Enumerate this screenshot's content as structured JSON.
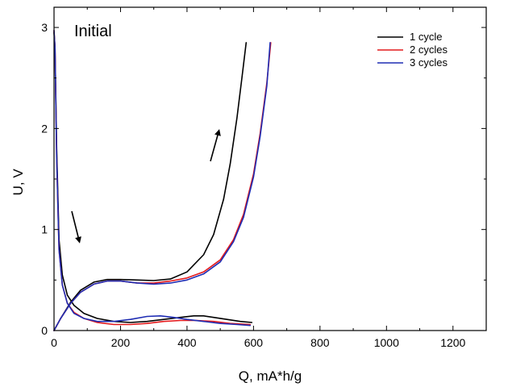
{
  "chart_data": {
    "type": "line",
    "title": "",
    "annotation": "Initial",
    "xlabel": "Q, mA*h/g",
    "ylabel": "U, V",
    "xlim": [
      0,
      1300
    ],
    "ylim": [
      0,
      3.2
    ],
    "xticks": [
      0,
      200,
      400,
      600,
      800,
      1000,
      1200
    ],
    "yticks": [
      0,
      1,
      2,
      3
    ],
    "grid": false,
    "legend_position": "top-right",
    "series": [
      {
        "name": "1 cycle",
        "color": "#000000",
        "segments": [
          {
            "x": [
              0,
              3,
              8,
              15,
              25,
              40,
              60,
              90,
              130,
              180,
              230,
              280,
              330,
              380,
              420,
              450,
              480,
              520,
              560,
              595
            ],
            "y": [
              2.95,
              2.8,
              1.8,
              0.9,
              0.55,
              0.35,
              0.25,
              0.17,
              0.12,
              0.09,
              0.08,
              0.09,
              0.11,
              0.13,
              0.145,
              0.145,
              0.13,
              0.11,
              0.09,
              0.08
            ]
          },
          {
            "x": [
              0,
              20,
              50,
              80,
              120,
              160,
              200,
              250,
              300,
              350,
              400,
              450,
              480,
              510,
              530,
              550,
              565,
              578
            ],
            "y": [
              0.0,
              0.12,
              0.28,
              0.4,
              0.48,
              0.505,
              0.505,
              0.5,
              0.495,
              0.51,
              0.58,
              0.75,
              0.95,
              1.3,
              1.65,
              2.1,
              2.5,
              2.85
            ]
          }
        ]
      },
      {
        "name": "2 cycles",
        "color": "#e41a1c",
        "segments": [
          {
            "x": [
              0,
              3,
              8,
              15,
              25,
              40,
              60,
              90,
              130,
              180,
              230,
              280,
              330,
              380,
              430,
              480,
              530,
              590
            ],
            "y": [
              2.97,
              2.8,
              1.7,
              0.8,
              0.45,
              0.27,
              0.18,
              0.12,
              0.08,
              0.06,
              0.06,
              0.07,
              0.09,
              0.1,
              0.1,
              0.09,
              0.07,
              0.06
            ]
          },
          {
            "x": [
              0,
              20,
              50,
              80,
              120,
              160,
              200,
              250,
              300,
              350,
              400,
              450,
              500,
              540,
              570,
              600,
              620,
              640,
              652
            ],
            "y": [
              0.0,
              0.12,
              0.27,
              0.38,
              0.46,
              0.49,
              0.49,
              0.47,
              0.47,
              0.49,
              0.52,
              0.58,
              0.7,
              0.9,
              1.15,
              1.55,
              1.95,
              2.45,
              2.85
            ]
          }
        ]
      },
      {
        "name": "3 cycles",
        "color": "#1f2db4",
        "segments": [
          {
            "x": [
              0,
              3,
              8,
              15,
              25,
              40,
              60,
              90,
              130,
              180,
              230,
              280,
              320,
              360,
              400,
              450,
              500,
              550,
              590
            ],
            "y": [
              2.97,
              2.8,
              1.7,
              0.8,
              0.45,
              0.27,
              0.17,
              0.12,
              0.09,
              0.09,
              0.11,
              0.14,
              0.145,
              0.13,
              0.11,
              0.09,
              0.07,
              0.06,
              0.05
            ]
          },
          {
            "x": [
              0,
              20,
              50,
              80,
              120,
              160,
              200,
              250,
              300,
              350,
              400,
              450,
              500,
              540,
              570,
              600,
              620,
              640,
              650
            ],
            "y": [
              0.0,
              0.12,
              0.27,
              0.38,
              0.46,
              0.49,
              0.49,
              0.47,
              0.46,
              0.47,
              0.5,
              0.56,
              0.68,
              0.88,
              1.12,
              1.52,
              1.92,
              2.42,
              2.85
            ]
          }
        ]
      }
    ]
  }
}
